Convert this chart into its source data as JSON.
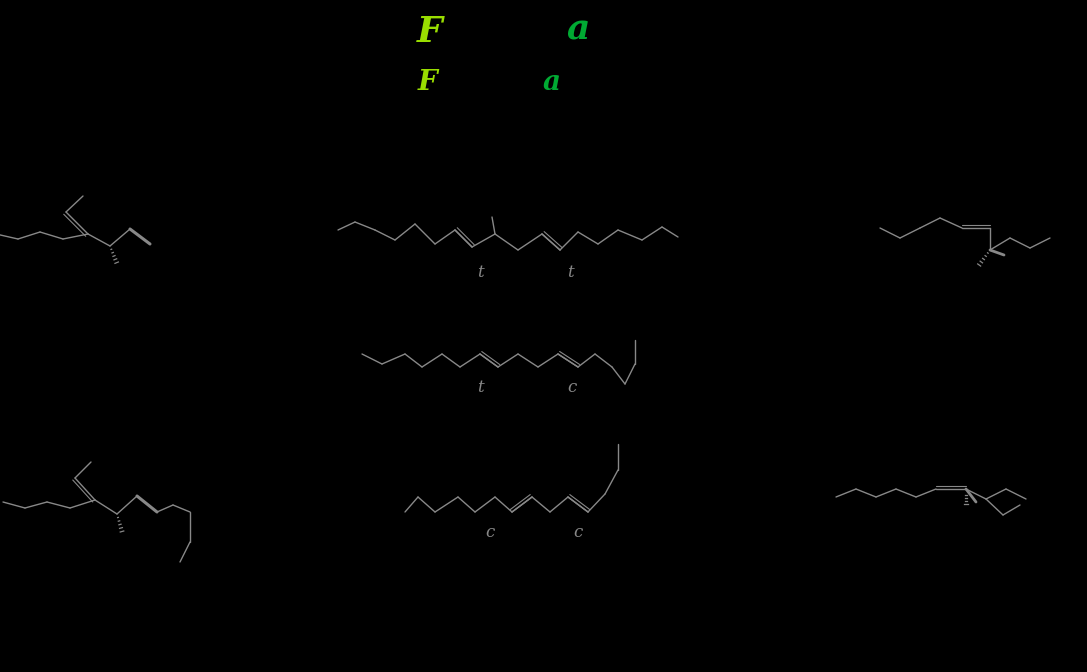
{
  "background_color": "#000000",
  "fig_width": 10.87,
  "fig_height": 6.72,
  "title_F1": "F",
  "title_a1": "a",
  "title_F2": "F",
  "title_a2": "a",
  "title_color_F": "#99dd00",
  "title_color_a": "#00aa33",
  "label_color": "#888888",
  "line_color": "#888888",
  "label_t": "t",
  "label_c": "c"
}
